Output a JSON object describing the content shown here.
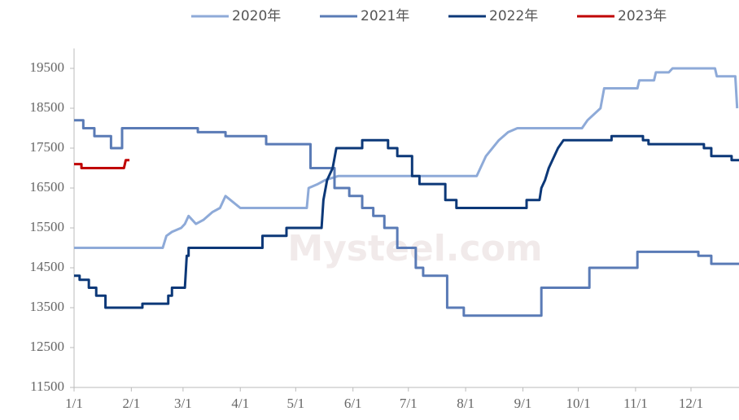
{
  "chart_data": {
    "type": "line",
    "watermark": "Mysteel.com",
    "xlim": [
      0,
      360
    ],
    "xticks": [
      {
        "value": 0,
        "label": "1/1"
      },
      {
        "value": 31,
        "label": "2/1"
      },
      {
        "value": 59,
        "label": "3/1"
      },
      {
        "value": 90,
        "label": "4/1"
      },
      {
        "value": 120,
        "label": "5/1"
      },
      {
        "value": 151,
        "label": "6/1"
      },
      {
        "value": 181,
        "label": "7/1"
      },
      {
        "value": 212,
        "label": "8/1"
      },
      {
        "value": 243,
        "label": "9/1"
      },
      {
        "value": 273,
        "label": "10/1"
      },
      {
        "value": 304,
        "label": "11/1"
      },
      {
        "value": 334,
        "label": "12/1"
      }
    ],
    "ylim": [
      11500,
      20000
    ],
    "yticks": [
      11500,
      12500,
      13500,
      14500,
      15500,
      16500,
      17500,
      18500,
      19500
    ],
    "legend": "top",
    "series": [
      {
        "name": "2020年",
        "color": "#8eaad8",
        "x": [
          0,
          48,
          50,
          50,
          53,
          53,
          58,
          58,
          60,
          60,
          62,
          62,
          66,
          66,
          70,
          70,
          75,
          75,
          79,
          79,
          82,
          82,
          90,
          90,
          126,
          127,
          132,
          136,
          143,
          218,
          223,
          230,
          235,
          240,
          275,
          278,
          285,
          287,
          305,
          306,
          314,
          315,
          322,
          324,
          347,
          348,
          358,
          359
        ],
        "values": [
          15000,
          15000,
          15300,
          15300,
          15400,
          15400,
          15500,
          15500,
          15600,
          15600,
          15800,
          15800,
          15600,
          15600,
          15700,
          15700,
          15900,
          15900,
          16000,
          16000,
          16300,
          16300,
          16000,
          16000,
          16000,
          16500,
          16600,
          16700,
          16800,
          16800,
          17300,
          17700,
          17900,
          18000,
          18000,
          18200,
          18500,
          19000,
          19000,
          19200,
          19200,
          19400,
          19400,
          19500,
          19500,
          19300,
          19300,
          18500
        ]
      },
      {
        "name": "2021年",
        "color": "#5a7bb6",
        "x": [
          0,
          5,
          5,
          11,
          11,
          20,
          20,
          26,
          26,
          67,
          67,
          82,
          82,
          104,
          104,
          128,
          128,
          141,
          141,
          149,
          149,
          156,
          156,
          162,
          162,
          168,
          168,
          175,
          175,
          185,
          185,
          189,
          189,
          202,
          202,
          211,
          211,
          253,
          253,
          279,
          279,
          305,
          305,
          338,
          338,
          345,
          345,
          360
        ],
        "values": [
          18200,
          18200,
          18000,
          18000,
          17800,
          17800,
          17500,
          17500,
          18000,
          18000,
          17900,
          17900,
          17800,
          17800,
          17600,
          17600,
          17000,
          17000,
          16500,
          16500,
          16300,
          16300,
          16000,
          16000,
          15800,
          15800,
          15500,
          15500,
          15000,
          15000,
          14500,
          14500,
          14300,
          14300,
          13500,
          13500,
          13300,
          13300,
          14000,
          14000,
          14500,
          14500,
          14900,
          14900,
          14800,
          14800,
          14600,
          14600
        ]
      },
      {
        "name": "2022年",
        "color": "#0c3878",
        "x": [
          0,
          3,
          3,
          8,
          8,
          12,
          12,
          17,
          17,
          37,
          37,
          51,
          51,
          53,
          53,
          60,
          61,
          62,
          62,
          102,
          102,
          115,
          115,
          134,
          135,
          137,
          140,
          142,
          156,
          156,
          170,
          170,
          175,
          175,
          183,
          183,
          187,
          187,
          201,
          201,
          207,
          207,
          245,
          245,
          252,
          253,
          255,
          257,
          262,
          265,
          291,
          291,
          308,
          308,
          311,
          311,
          341,
          341,
          345,
          345,
          356,
          356,
          360
        ],
        "values": [
          14300,
          14300,
          14200,
          14200,
          14000,
          14000,
          13800,
          13800,
          13500,
          13500,
          13600,
          13600,
          13800,
          13800,
          14000,
          14000,
          14800,
          14800,
          15000,
          15000,
          15300,
          15300,
          15500,
          15500,
          16200,
          16700,
          17000,
          17500,
          17500,
          17700,
          17700,
          17500,
          17500,
          17300,
          17300,
          16800,
          16800,
          16600,
          16600,
          16200,
          16200,
          16000,
          16000,
          16200,
          16200,
          16500,
          16700,
          17000,
          17500,
          17700,
          17700,
          17800,
          17800,
          17700,
          17700,
          17600,
          17600,
          17500,
          17500,
          17300,
          17300,
          17200,
          17200
        ]
      },
      {
        "name": "2023年",
        "color": "#c00000",
        "x": [
          0,
          4,
          4,
          27,
          28,
          30
        ],
        "values": [
          17100,
          17100,
          17000,
          17000,
          17200,
          17200
        ]
      }
    ]
  }
}
